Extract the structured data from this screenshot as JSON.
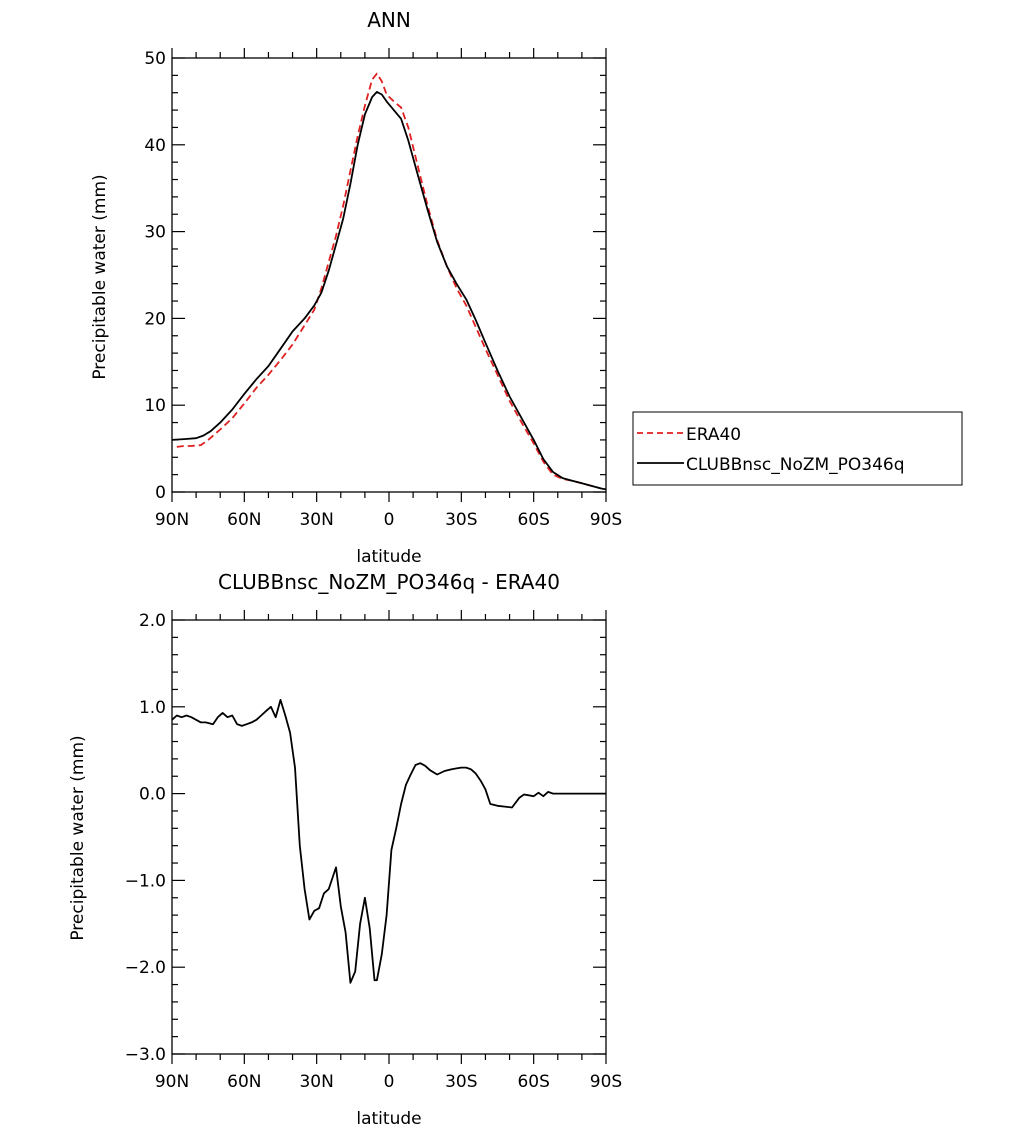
{
  "chart_data": [
    {
      "type": "line",
      "title": "ANN",
      "xlabel": "latitude",
      "ylabel": "Precipitable water (mm)",
      "xlim": [
        90,
        -90
      ],
      "ylim": [
        0,
        50
      ],
      "x_ticks": [
        90,
        60,
        30,
        0,
        -30,
        -60,
        -90
      ],
      "x_tick_labels": [
        "90N",
        "60N",
        "30N",
        "0",
        "30S",
        "60S",
        "90S"
      ],
      "y_ticks": [
        0,
        10,
        20,
        30,
        40,
        50
      ],
      "y_tick_labels": [
        "0",
        "10",
        "20",
        "30",
        "40",
        "50"
      ],
      "legend_position": "right",
      "series": [
        {
          "name": "ERA40",
          "color": "#e02020",
          "dash": "dashed",
          "x": [
            88,
            85,
            82,
            78,
            75,
            70,
            65,
            60,
            55,
            50,
            45,
            40,
            35,
            31,
            28,
            25,
            22,
            19,
            16,
            13,
            10,
            7,
            5,
            3,
            1,
            -2,
            -5,
            -8,
            -12,
            -16,
            -20,
            -24,
            -28,
            -32,
            -36,
            -40,
            -45,
            -50,
            -55,
            -60,
            -64,
            -68,
            -72,
            -76,
            -80,
            -84,
            -88
          ],
          "y": [
            5.2,
            5.3,
            5.3,
            5.4,
            6.0,
            7.2,
            8.5,
            10.2,
            12.0,
            13.5,
            15.2,
            17.0,
            19.2,
            21.0,
            23.5,
            26.5,
            29.5,
            33.0,
            37.0,
            41.0,
            44.5,
            47.5,
            48.2,
            47.3,
            45.8,
            45.0,
            44.3,
            42.0,
            37.5,
            33.0,
            29.0,
            26.0,
            23.5,
            21.5,
            19.0,
            16.5,
            13.5,
            10.5,
            8.0,
            5.6,
            3.5,
            2.0,
            1.5,
            1.3,
            1.0,
            0.7,
            0.4
          ]
        },
        {
          "name": "CLUBBnsc_NoZM_PO346q",
          "color": "#000000",
          "dash": "solid",
          "x": [
            90,
            85,
            80,
            77,
            74,
            70,
            65,
            60,
            55,
            50,
            45,
            40,
            35,
            31,
            28,
            25,
            22,
            19,
            16,
            13,
            10,
            7,
            5,
            3,
            1,
            -2,
            -5,
            -8,
            -12,
            -16,
            -20,
            -24,
            -28,
            -32,
            -36,
            -40,
            -45,
            -50,
            -55,
            -60,
            -64,
            -68,
            -72,
            -76,
            -80,
            -84,
            -88,
            -90
          ],
          "y": [
            6.0,
            6.1,
            6.2,
            6.5,
            7.0,
            8.0,
            9.5,
            11.3,
            13.0,
            14.5,
            16.5,
            18.5,
            20.0,
            21.5,
            23.0,
            25.5,
            28.5,
            31.5,
            35.5,
            40.0,
            43.5,
            45.5,
            46.1,
            45.8,
            45.0,
            44.0,
            43.0,
            40.5,
            36.5,
            32.5,
            28.8,
            26.0,
            24.0,
            22.2,
            19.8,
            17.2,
            14.0,
            11.0,
            8.5,
            6.0,
            3.8,
            2.3,
            1.6,
            1.3,
            1.0,
            0.7,
            0.4,
            0.3
          ]
        }
      ]
    },
    {
      "type": "line",
      "title": "CLUBBnsc_NoZM_PO346q - ERA40",
      "xlabel": "latitude",
      "ylabel": "Precipitable water (mm)",
      "xlim": [
        90,
        -90
      ],
      "ylim": [
        -3.0,
        2.0
      ],
      "x_ticks": [
        90,
        60,
        30,
        0,
        -30,
        -60,
        -90
      ],
      "x_tick_labels": [
        "90N",
        "60N",
        "30N",
        "0",
        "30S",
        "60S",
        "90S"
      ],
      "y_ticks": [
        -3.0,
        -2.0,
        -1.0,
        0.0,
        1.0,
        2.0
      ],
      "y_tick_labels": [
        "-3.0",
        "-2.0",
        "-1.0",
        "0.0",
        "1.0",
        "2.0"
      ],
      "series": [
        {
          "color": "#000000",
          "dash": "solid",
          "x": [
            90,
            88,
            86,
            84,
            82,
            80,
            78,
            76,
            73,
            71,
            69,
            67,
            65,
            63,
            61,
            59,
            57,
            55,
            53,
            51,
            49,
            47,
            45,
            43,
            41,
            39,
            37,
            35,
            33,
            31,
            29,
            27,
            25,
            22,
            20,
            18,
            16,
            14,
            12,
            10,
            8,
            6,
            5,
            3,
            1,
            -1,
            -3,
            -5,
            -7,
            -9,
            -11,
            -13,
            -15,
            -17,
            -20,
            -23,
            -26,
            -28,
            -30,
            -32,
            -34,
            -36,
            -38,
            -40,
            -42,
            -45,
            -48,
            -51,
            -54,
            -56,
            -58,
            -60,
            -62,
            -64,
            -66,
            -68,
            -70,
            -72,
            -74,
            -76,
            -78,
            -80,
            -82,
            -84,
            -86,
            -88,
            -90
          ],
          "y": [
            0.85,
            0.9,
            0.88,
            0.9,
            0.88,
            0.85,
            0.82,
            0.82,
            0.8,
            0.88,
            0.93,
            0.88,
            0.9,
            0.8,
            0.78,
            0.8,
            0.82,
            0.85,
            0.9,
            0.95,
            1.0,
            0.88,
            1.08,
            0.9,
            0.7,
            0.3,
            -0.6,
            -1.1,
            -1.45,
            -1.35,
            -1.32,
            -1.15,
            -1.1,
            -0.85,
            -1.3,
            -1.6,
            -2.18,
            -2.05,
            -1.5,
            -1.2,
            -1.55,
            -2.15,
            -2.15,
            -1.85,
            -1.4,
            -0.65,
            -0.4,
            -0.12,
            0.1,
            0.22,
            0.33,
            0.35,
            0.32,
            0.27,
            0.22,
            0.26,
            0.28,
            0.29,
            0.3,
            0.3,
            0.28,
            0.23,
            0.15,
            0.05,
            -0.12,
            -0.14,
            -0.15,
            -0.16,
            -0.05,
            -0.01,
            -0.02,
            -0.03,
            0.01,
            -0.03,
            0.02,
            0.0,
            0.0,
            0.0,
            0.0,
            0.0,
            0.0,
            0.0,
            0.0,
            0.0,
            0.0,
            0.0,
            0.0
          ]
        }
      ]
    }
  ]
}
